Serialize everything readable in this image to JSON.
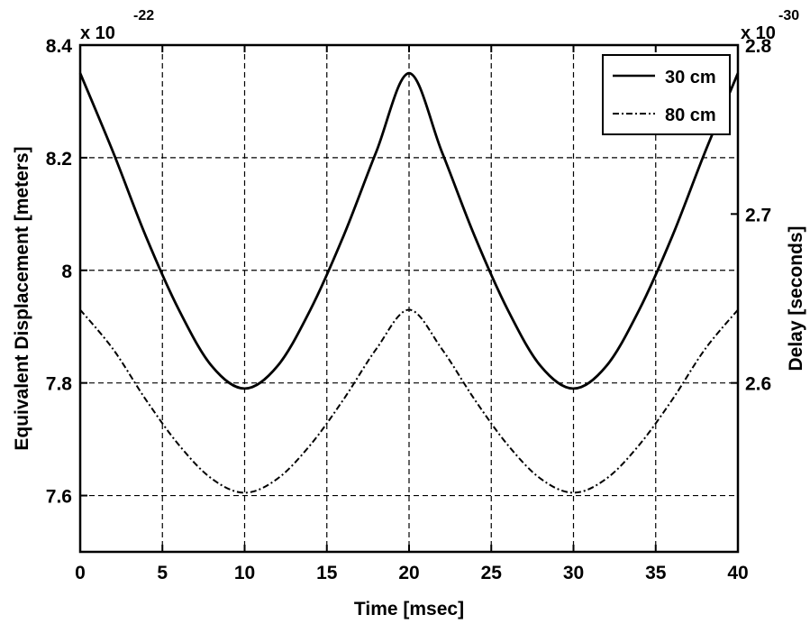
{
  "chart_data": {
    "type": "line",
    "xlabel": "Time [msec]",
    "ylabel": "Equivalent Displacement [meters]",
    "y2label": "Delay [seconds]",
    "xlim": [
      0,
      40
    ],
    "ylim": [
      7.5,
      8.4
    ],
    "y2lim": [
      2.5,
      2.8
    ],
    "x_ticks": [
      "0",
      "5",
      "10",
      "15",
      "20",
      "25",
      "30",
      "35",
      "40"
    ],
    "y_ticks": [
      "7.6",
      "7.8",
      "8",
      "8.2",
      "8.4"
    ],
    "y2_ticks": [
      "2.6",
      "2.7",
      "2.8"
    ],
    "y_multiplier": {
      "base": "x 10",
      "exponent": "-22"
    },
    "y2_multiplier": {
      "base": "x 10",
      "exponent": "-30"
    },
    "grid": true,
    "legend_position": "top-right",
    "series": [
      {
        "name": "30 cm",
        "style": "solid",
        "x": [
          0,
          2,
          4,
          6,
          8,
          10,
          12,
          14,
          16,
          18,
          20,
          22,
          24,
          26,
          28,
          30,
          32,
          34,
          36,
          38,
          40
        ],
        "y": [
          8.35,
          8.21,
          8.06,
          7.93,
          7.83,
          7.79,
          7.83,
          7.93,
          8.06,
          8.21,
          8.35,
          8.21,
          8.06,
          7.93,
          7.83,
          7.79,
          7.83,
          7.93,
          8.06,
          8.21,
          8.35
        ]
      },
      {
        "name": "80 cm",
        "style": "dash-dot",
        "x": [
          0,
          2,
          4,
          6,
          8,
          10,
          12,
          14,
          16,
          18,
          20,
          22,
          24,
          26,
          28,
          30,
          32,
          34,
          36,
          38,
          40
        ],
        "y": [
          7.93,
          7.86,
          7.77,
          7.69,
          7.63,
          7.605,
          7.63,
          7.69,
          7.77,
          7.86,
          7.93,
          7.86,
          7.77,
          7.69,
          7.63,
          7.605,
          7.63,
          7.69,
          7.77,
          7.86,
          7.93
        ]
      }
    ]
  }
}
